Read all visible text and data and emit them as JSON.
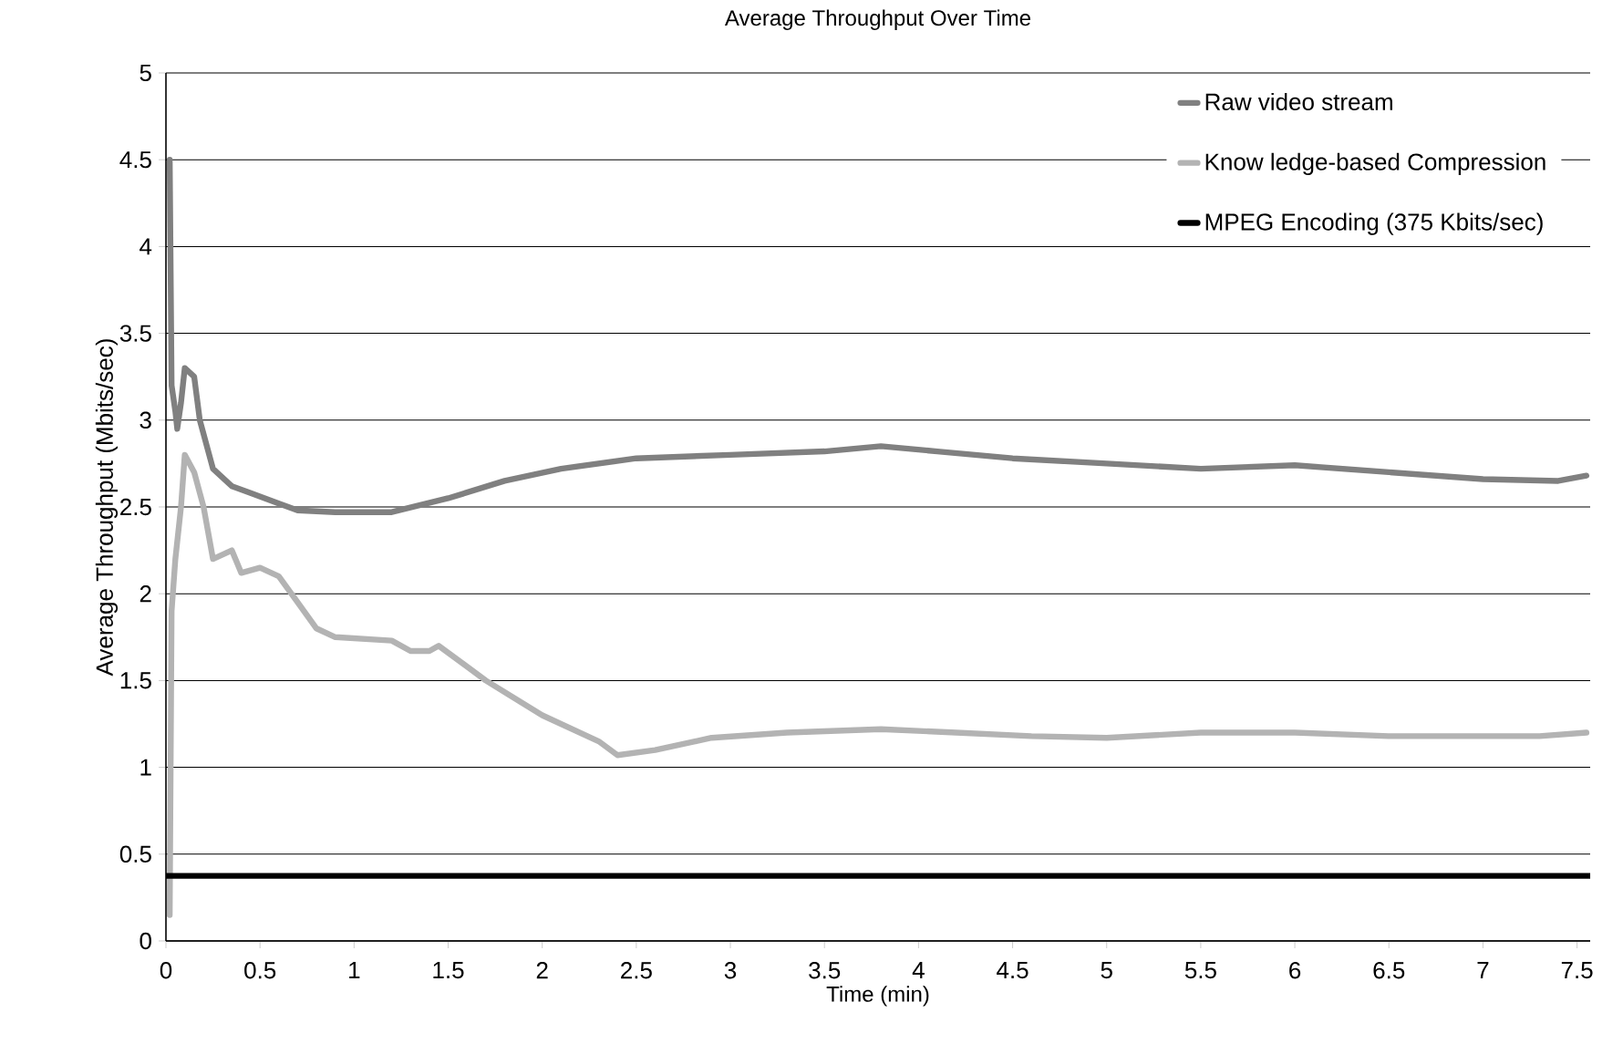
{
  "chart_data": {
    "type": "line",
    "title": "Average Throughput Over Time",
    "xlabel": "Time (min)",
    "ylabel": "Average Throughput (Mbits/sec)",
    "xlim": [
      0,
      7.57
    ],
    "ylim": [
      0,
      5
    ],
    "xticks": [
      0,
      0.5,
      1,
      1.5,
      2,
      2.5,
      3,
      3.5,
      4,
      4.5,
      5,
      5.5,
      6,
      6.5,
      7,
      7.5
    ],
    "yticks": [
      0,
      0.5,
      1,
      1.5,
      2,
      2.5,
      3,
      3.5,
      4,
      4.5,
      5
    ],
    "grid": "y",
    "legend": "top right",
    "marker": "none",
    "line_style": "solid",
    "series": [
      {
        "name": "Raw video stream",
        "color": "#808080",
        "x": [
          0.02,
          0.03,
          0.05,
          0.06,
          0.08,
          0.1,
          0.15,
          0.18,
          0.25,
          0.35,
          0.45,
          0.6,
          0.7,
          0.9,
          1.2,
          1.5,
          1.8,
          2.1,
          2.5,
          3.0,
          3.5,
          3.8,
          4.1,
          4.5,
          5.0,
          5.5,
          6.0,
          6.5,
          7.0,
          7.4,
          7.55
        ],
        "values": [
          4.5,
          3.2,
          3.05,
          2.95,
          3.1,
          3.3,
          3.25,
          3.0,
          2.72,
          2.62,
          2.58,
          2.52,
          2.48,
          2.47,
          2.47,
          2.55,
          2.65,
          2.72,
          2.78,
          2.8,
          2.82,
          2.85,
          2.82,
          2.78,
          2.75,
          2.72,
          2.74,
          2.7,
          2.66,
          2.65,
          2.68
        ]
      },
      {
        "name": "Know ledge-based Compression",
        "color": "#b3b3b3",
        "x": [
          0.02,
          0.03,
          0.05,
          0.08,
          0.1,
          0.15,
          0.2,
          0.25,
          0.35,
          0.4,
          0.5,
          0.6,
          0.7,
          0.8,
          0.9,
          1.2,
          1.3,
          1.4,
          1.45,
          1.7,
          2.0,
          2.3,
          2.4,
          2.6,
          2.9,
          3.3,
          3.8,
          4.2,
          4.6,
          5.0,
          5.5,
          6.0,
          6.5,
          7.3,
          7.55
        ],
        "values": [
          0.15,
          1.9,
          2.2,
          2.5,
          2.8,
          2.7,
          2.5,
          2.2,
          2.25,
          2.12,
          2.15,
          2.1,
          1.95,
          1.8,
          1.75,
          1.73,
          1.67,
          1.67,
          1.7,
          1.5,
          1.3,
          1.15,
          1.07,
          1.1,
          1.17,
          1.2,
          1.22,
          1.2,
          1.18,
          1.17,
          1.2,
          1.2,
          1.18,
          1.18,
          1.2
        ]
      },
      {
        "name": "MPEG Encoding (375 Kbits/sec)",
        "color": "#000000",
        "x": [
          0,
          7.57
        ],
        "values": [
          0.375,
          0.375
        ]
      }
    ]
  }
}
